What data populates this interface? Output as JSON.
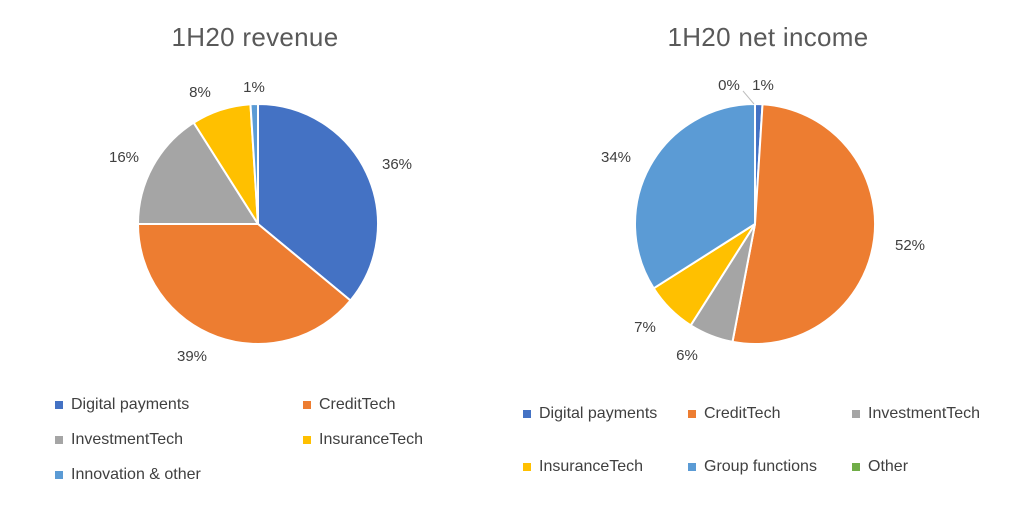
{
  "chart_data": [
    {
      "type": "pie",
      "title": "1H20 revenue",
      "start_angle_deg": 0,
      "colors": [
        "#4472C4",
        "#ED7D31",
        "#A5A5A5",
        "#FFC000",
        "#5B9BD5"
      ],
      "categories": [
        "Digital payments",
        "CreditTech",
        "InvestmentTech",
        "InsuranceTech",
        "Innovation & other"
      ],
      "values": [
        36,
        39,
        16,
        8,
        1
      ],
      "data_labels": [
        "36%",
        "39%",
        "16%",
        "8%",
        "1%"
      ],
      "legend_position": "bottom"
    },
    {
      "type": "pie",
      "title": "1H20 net income",
      "start_angle_deg": 0,
      "colors": [
        "#4472C4",
        "#ED7D31",
        "#A5A5A5",
        "#FFC000",
        "#5B9BD5",
        "#70AD47"
      ],
      "categories": [
        "Digital payments",
        "CreditTech",
        "InvestmentTech",
        "InsuranceTech",
        "Group functions",
        "Other"
      ],
      "values": [
        1,
        52,
        6,
        7,
        34,
        0
      ],
      "data_labels": [
        "1%",
        "52%",
        "6%",
        "7%",
        "34%",
        "0%"
      ],
      "legend_position": "bottom"
    }
  ]
}
